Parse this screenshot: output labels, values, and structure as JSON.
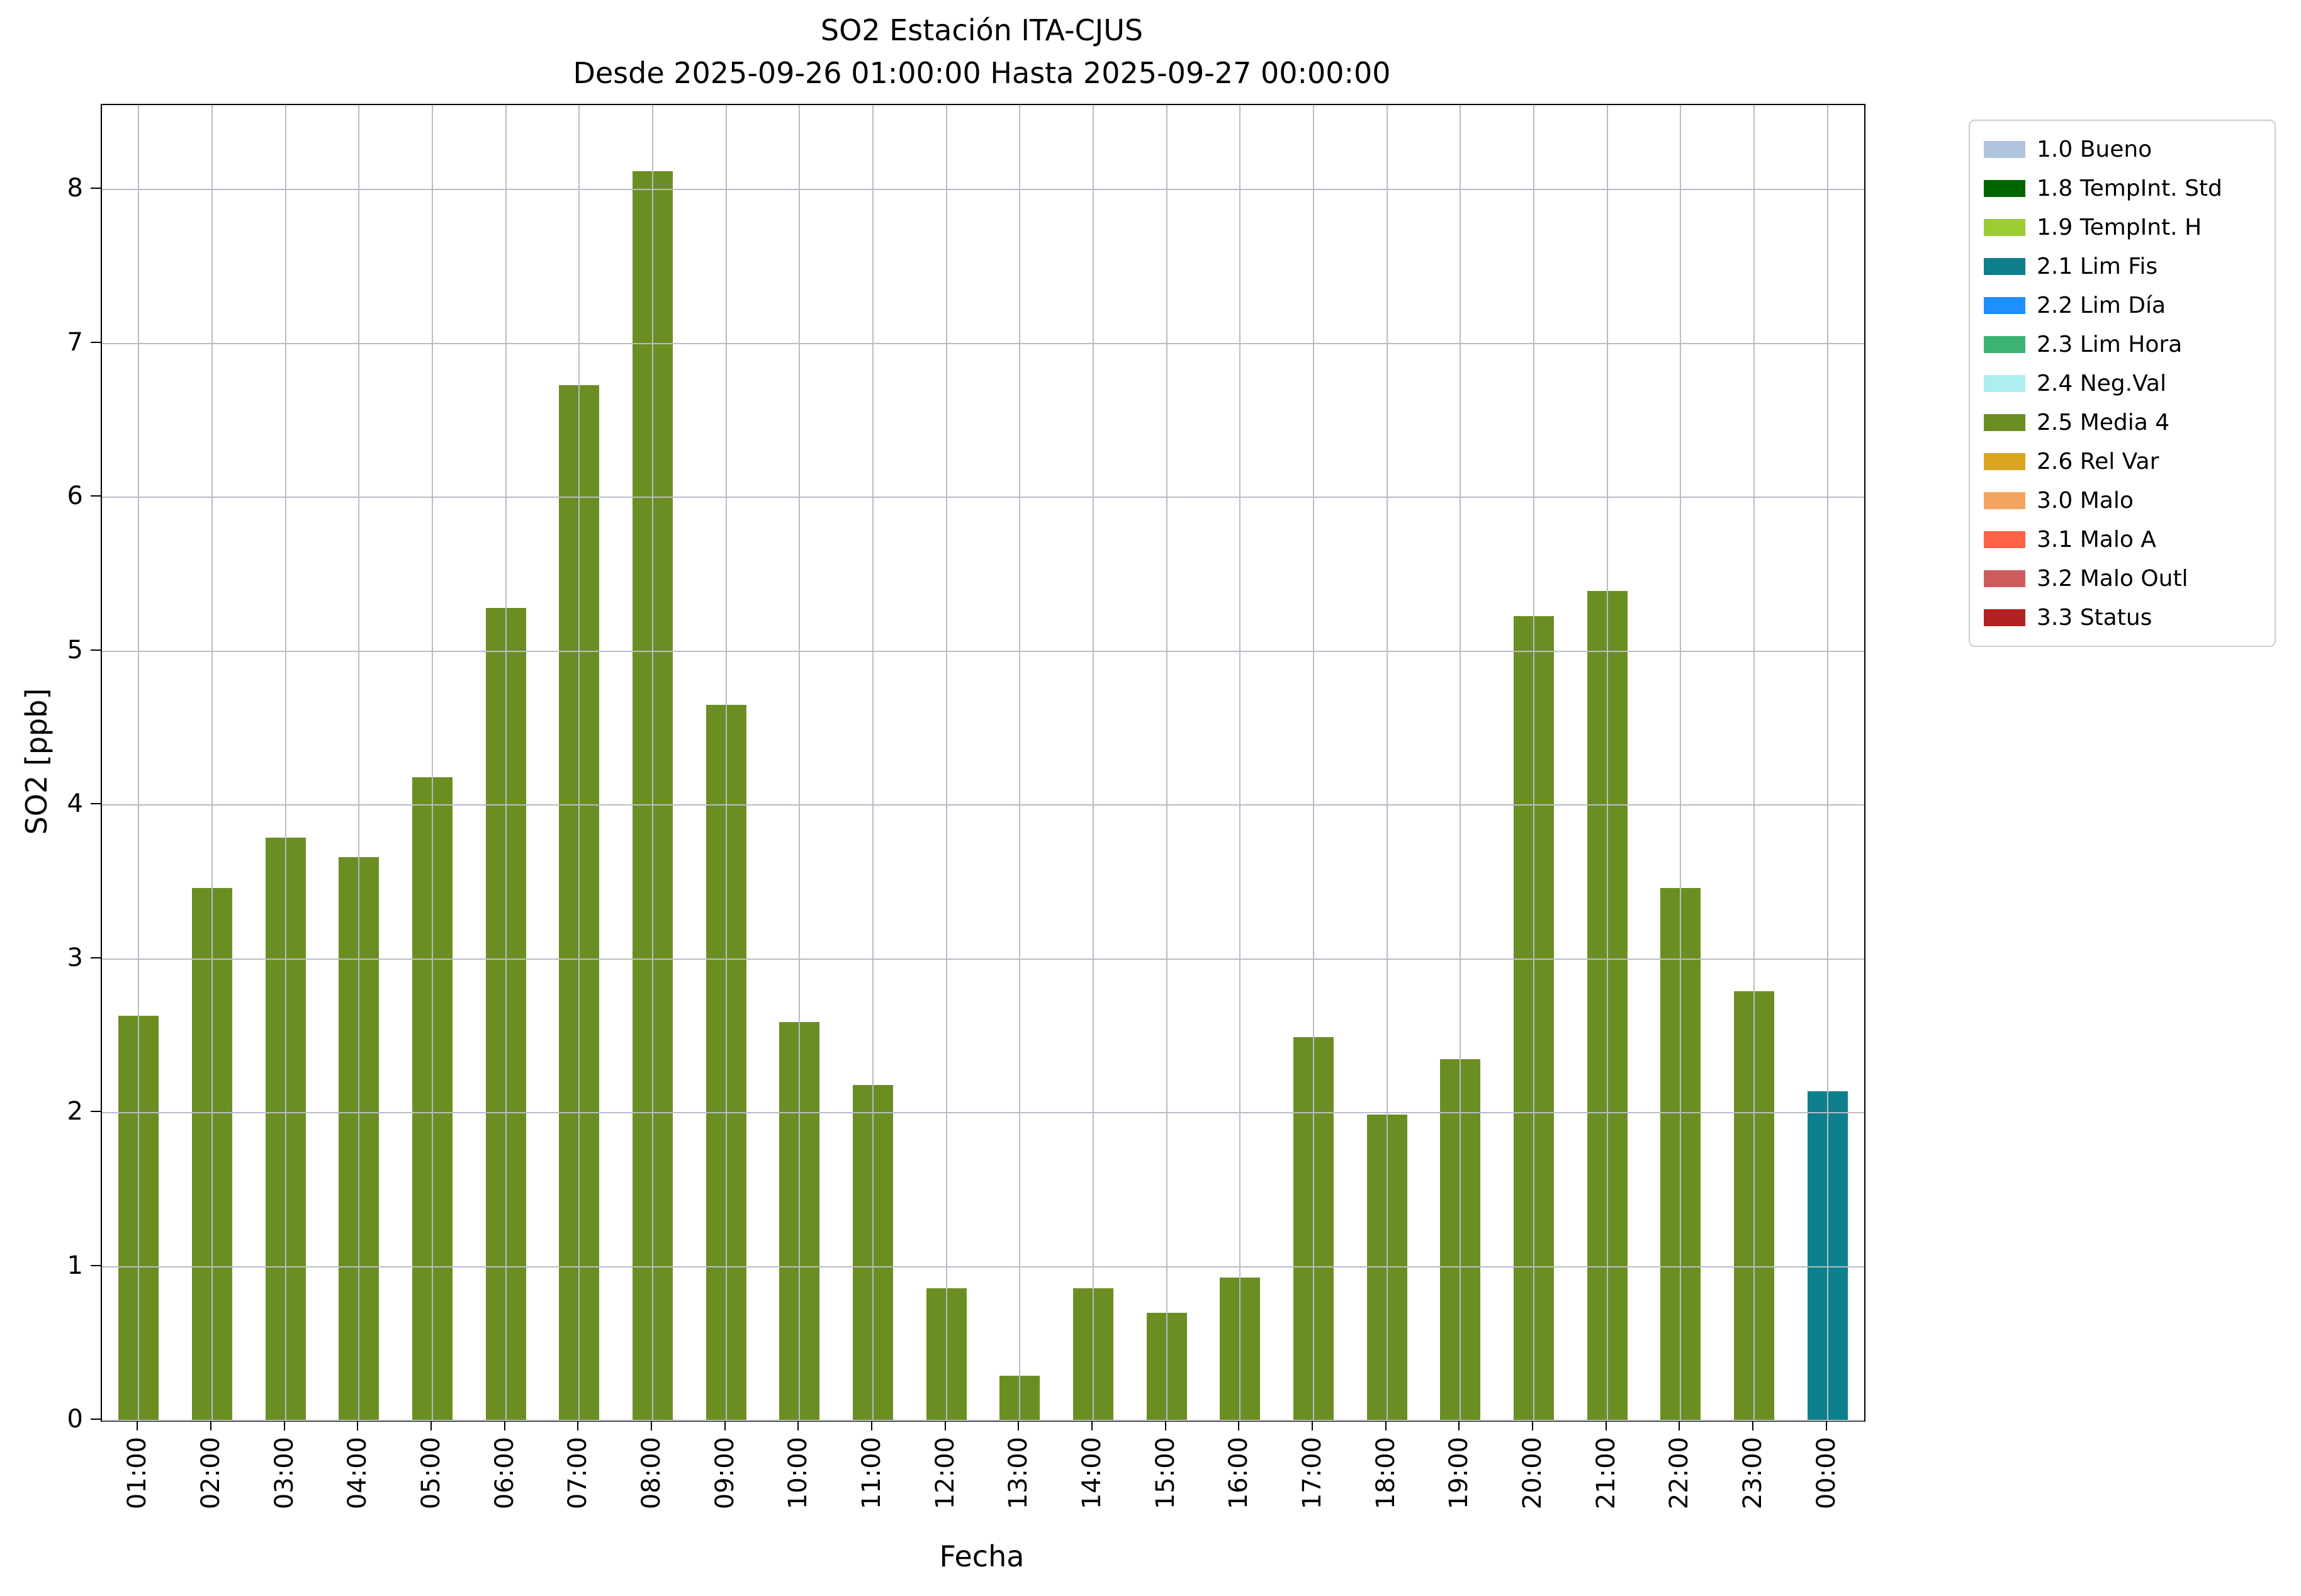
{
  "title": {
    "line1": "SO2 Estación ITA-CJUS",
    "line2": "Desde 2025-09-26 01:00:00 Hasta 2025-09-27 00:00:00"
  },
  "axes": {
    "x_label": "Fecha",
    "y_label": "SO2 [ppb]",
    "y_ticks": [
      0,
      1,
      2,
      3,
      4,
      5,
      6,
      7,
      8
    ],
    "y_max": 8.55
  },
  "colors": {
    "grid": "#b9bcc6",
    "spine": "#000000",
    "default_bar": "#6B8E23",
    "teal_bar": "#0E7F8C"
  },
  "chart_data": {
    "type": "bar",
    "title": "SO2 Estación ITA-CJUS",
    "subtitle": "Desde 2025-09-26 01:00:00 Hasta 2025-09-27 00:00:00",
    "xlabel": "Fecha",
    "ylabel": "SO2 [ppb]",
    "ylim": [
      0,
      8.55
    ],
    "grid": true,
    "legend_position": "outside upper right",
    "categories": [
      "01:00",
      "02:00",
      "03:00",
      "04:00",
      "05:00",
      "06:00",
      "07:00",
      "08:00",
      "09:00",
      "10:00",
      "11:00",
      "12:00",
      "13:00",
      "14:00",
      "15:00",
      "16:00",
      "17:00",
      "18:00",
      "19:00",
      "20:00",
      "21:00",
      "22:00",
      "23:00",
      "00:00"
    ],
    "values": [
      2.63,
      3.46,
      3.79,
      3.66,
      4.18,
      5.28,
      6.73,
      8.12,
      4.65,
      2.59,
      2.18,
      0.86,
      0.29,
      0.86,
      0.7,
      0.93,
      2.49,
      1.99,
      2.35,
      5.23,
      5.39,
      3.46,
      2.79,
      2.14
    ],
    "bar_colors": [
      "#6B8E23",
      "#6B8E23",
      "#6B8E23",
      "#6B8E23",
      "#6B8E23",
      "#6B8E23",
      "#6B8E23",
      "#6B8E23",
      "#6B8E23",
      "#6B8E23",
      "#6B8E23",
      "#6B8E23",
      "#6B8E23",
      "#6B8E23",
      "#6B8E23",
      "#6B8E23",
      "#6B8E23",
      "#6B8E23",
      "#6B8E23",
      "#6B8E23",
      "#6B8E23",
      "#6B8E23",
      "#6B8E23",
      "#0E7F8C"
    ],
    "bar_classes": [
      "2.5 Media 4",
      "2.5 Media 4",
      "2.5 Media 4",
      "2.5 Media 4",
      "2.5 Media 4",
      "2.5 Media 4",
      "2.5 Media 4",
      "2.5 Media 4",
      "2.5 Media 4",
      "2.5 Media 4",
      "2.5 Media 4",
      "2.5 Media 4",
      "2.5 Media 4",
      "2.5 Media 4",
      "2.5 Media 4",
      "2.5 Media 4",
      "2.5 Media 4",
      "2.5 Media 4",
      "2.5 Media 4",
      "2.5 Media 4",
      "2.5 Media 4",
      "2.5 Media 4",
      "2.5 Media 4",
      "2.1 Lim Fis"
    ]
  },
  "legend": {
    "items": [
      {
        "label": "1.0 Bueno",
        "color": "#B0C4DE"
      },
      {
        "label": "1.8 TempInt. Std",
        "color": "#006400"
      },
      {
        "label": "1.9 TempInt. H",
        "color": "#9ACD32"
      },
      {
        "label": "2.1 Lim Fis",
        "color": "#0E7F8C"
      },
      {
        "label": "2.2 Lim Día",
        "color": "#1E90FF"
      },
      {
        "label": "2.3 Lim Hora",
        "color": "#3CB371"
      },
      {
        "label": "2.4 Neg.Val",
        "color": "#AFEEEE"
      },
      {
        "label": "2.5 Media 4",
        "color": "#6B8E23"
      },
      {
        "label": "2.6 Rel Var",
        "color": "#DAA520"
      },
      {
        "label": "3.0 Malo",
        "color": "#F4A460"
      },
      {
        "label": "3.1 Malo A",
        "color": "#FF6347"
      },
      {
        "label": "3.2 Malo Outl",
        "color": "#CD5C5C"
      },
      {
        "label": "3.3 Status",
        "color": "#B22222"
      }
    ]
  }
}
